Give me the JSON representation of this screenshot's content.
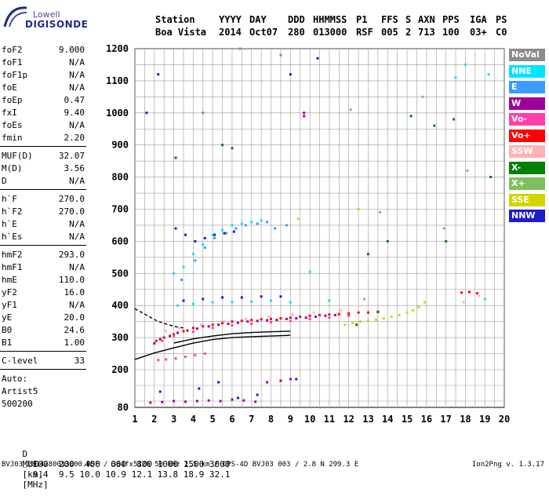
{
  "logo": {
    "top": "Lowell",
    "bottom": "DIGISONDE"
  },
  "header": {
    "cols": [
      {
        "label": "Station",
        "value": "Boa Vista"
      },
      {
        "label": "YYYY",
        "value": "2014"
      },
      {
        "label": "DAY",
        "value": "Oct07"
      },
      {
        "label": "DDD",
        "value": "280"
      },
      {
        "label": "HHMMSS",
        "value": "013000"
      },
      {
        "label": "P1",
        "value": "RSF"
      },
      {
        "label": "FFS",
        "value": "005"
      },
      {
        "label": "S",
        "value": "2"
      },
      {
        "label": "AXN",
        "value": "713"
      },
      {
        "label": "PPS",
        "value": "100"
      },
      {
        "label": "IGA",
        "value": "03+"
      },
      {
        "label": "PS",
        "value": "C0"
      }
    ]
  },
  "params_group1": [
    {
      "k": "foF2",
      "v": "9.000"
    },
    {
      "k": "foF1",
      "v": "N/A"
    },
    {
      "k": "foF1p",
      "v": "N/A"
    },
    {
      "k": "foE",
      "v": "N/A"
    },
    {
      "k": "foEp",
      "v": "0.47"
    },
    {
      "k": "fxI",
      "v": "9.40"
    },
    {
      "k": "foEs",
      "v": "N/A"
    },
    {
      "k": "fmin",
      "v": "2.20"
    }
  ],
  "params_group2": [
    {
      "k": "MUF(D)",
      "v": "32.07"
    },
    {
      "k": "M(D)",
      "v": "3.56"
    },
    {
      "k": "D",
      "v": "N/A"
    }
  ],
  "params_group3": [
    {
      "k": "h`F",
      "v": "270.0"
    },
    {
      "k": "h`F2",
      "v": "270.0"
    },
    {
      "k": "h`E",
      "v": "N/A"
    },
    {
      "k": "h`Es",
      "v": "N/A"
    }
  ],
  "params_group4": [
    {
      "k": "hmF2",
      "v": "293.0"
    },
    {
      "k": "hmF1",
      "v": "N/A"
    },
    {
      "k": "hmE",
      "v": "110.0"
    },
    {
      "k": "yF2",
      "v": "16.0"
    },
    {
      "k": "yF1",
      "v": "N/A"
    },
    {
      "k": "yE",
      "v": "20.0"
    },
    {
      "k": "B0",
      "v": "24.6"
    },
    {
      "k": "B1",
      "v": "1.00"
    }
  ],
  "params_group5": [
    {
      "k": "C-level",
      "v": "33"
    }
  ],
  "auto": {
    "line1": "Auto:",
    "line2": "Artist5",
    "line3": "500200"
  },
  "legend": [
    {
      "label": "NoVal",
      "color": "#8c8c8c"
    },
    {
      "label": "NNE",
      "color": "#00e5ff"
    },
    {
      "label": "E",
      "color": "#3b9cff"
    },
    {
      "label": "W",
      "color": "#a0009a"
    },
    {
      "label": "Vo-",
      "color": "#ff3fa8"
    },
    {
      "label": "Vo+",
      "color": "#ff0000"
    },
    {
      "label": "SSW",
      "color": "#ffb2b2"
    },
    {
      "label": "X-",
      "color": "#008000"
    },
    {
      "label": "X+",
      "color": "#7fbf5f"
    },
    {
      "label": "SSE",
      "color": "#d4d400"
    },
    {
      "label": "NNW",
      "color": "#1c1cc8"
    }
  ],
  "dmuf": {
    "d_label": "D",
    "d_values": [
      "100",
      "200",
      "400",
      "600",
      "800",
      "1000",
      "1500",
      "3000"
    ],
    "d_unit": "[km]",
    "muf_label": "MUF",
    "muf_values": [
      "9.4",
      "9.5",
      "10.0",
      "10.9",
      "12.1",
      "13.8",
      "18.9",
      "32.1"
    ],
    "muf_unit": "[MHz]"
  },
  "footer": {
    "left": "BVJ03_2014280013000.RSF / 384fx512h 50 kHz 2.5 km / DPS-4D BVJ03 003 / 2.8 N 299.3 E",
    "right": "Ion2Png v. 1.3.17"
  },
  "chart_data": {
    "type": "scatter",
    "title": "",
    "xlabel": "",
    "ylabel": "",
    "xlim": [
      1,
      20
    ],
    "ylim": [
      80,
      1200
    ],
    "xticks": [
      1,
      2,
      3,
      4,
      5,
      6,
      7,
      8,
      9,
      10,
      11,
      12,
      13,
      14,
      15,
      16,
      17,
      18,
      19,
      20
    ],
    "yticks": [
      80,
      200,
      300,
      400,
      500,
      600,
      700,
      800,
      900,
      1000,
      1100,
      1200
    ],
    "grid": true,
    "legend_position": "right",
    "series": [
      {
        "name": "Vo+",
        "color": "#ff0000",
        "points": [
          [
            2.1,
            290
          ],
          [
            2.5,
            300
          ],
          [
            3,
            310
          ],
          [
            3.5,
            320
          ],
          [
            4,
            330
          ],
          [
            4.5,
            335
          ],
          [
            5,
            340
          ],
          [
            5.5,
            345
          ],
          [
            6,
            350
          ],
          [
            6.5,
            352
          ],
          [
            7,
            355
          ],
          [
            7.5,
            357
          ],
          [
            8,
            358
          ],
          [
            8.5,
            360
          ],
          [
            9,
            362
          ],
          [
            9.5,
            365
          ],
          [
            10,
            368
          ],
          [
            10.5,
            370
          ],
          [
            11,
            372
          ],
          [
            11.5,
            373
          ],
          [
            12,
            375
          ],
          [
            12.5,
            378
          ],
          [
            13,
            378
          ],
          [
            13.5,
            380
          ],
          [
            17.8,
            440
          ],
          [
            18.2,
            442
          ],
          [
            18.6,
            438
          ]
        ]
      },
      {
        "name": "W",
        "color": "#a0009a",
        "points": [
          [
            2.0,
            282
          ],
          [
            2.3,
            295
          ],
          [
            2.8,
            305
          ],
          [
            3.2,
            315
          ],
          [
            3.7,
            322
          ],
          [
            4.2,
            328
          ],
          [
            4.8,
            335
          ],
          [
            5.3,
            340
          ],
          [
            5.8,
            343
          ],
          [
            6.3,
            346
          ],
          [
            6.8,
            350
          ],
          [
            7.3,
            352
          ],
          [
            7.8,
            354
          ],
          [
            8.3,
            355
          ],
          [
            8.8,
            358
          ],
          [
            9.3,
            360
          ],
          [
            9.8,
            362
          ],
          [
            10.3,
            365
          ],
          [
            10.8,
            368
          ],
          [
            11.3,
            370
          ],
          [
            1.8,
            95
          ],
          [
            2.4,
            97
          ],
          [
            3.0,
            100
          ],
          [
            3.6,
            98
          ],
          [
            4.2,
            100
          ],
          [
            4.8,
            102
          ],
          [
            5.4,
            100
          ],
          [
            6.0,
            105
          ],
          [
            6.6,
            102
          ],
          [
            7.2,
            98
          ],
          [
            7.8,
            160
          ],
          [
            8.5,
            165
          ],
          [
            9.0,
            170
          ],
          [
            9.7,
            1000
          ],
          [
            9.7,
            990
          ]
        ]
      },
      {
        "name": "NNE",
        "color": "#00e5ff",
        "points": [
          [
            3.0,
            500
          ],
          [
            3.5,
            520
          ],
          [
            4.0,
            560
          ],
          [
            4.5,
            590
          ],
          [
            5.0,
            620
          ],
          [
            5.5,
            635
          ],
          [
            6.0,
            650
          ],
          [
            6.5,
            655
          ],
          [
            7.0,
            660
          ],
          [
            7.5,
            665
          ],
          [
            3.2,
            400
          ],
          [
            4.0,
            405
          ],
          [
            5.0,
            410
          ],
          [
            6.0,
            410
          ],
          [
            7.0,
            412
          ],
          [
            8.0,
            415
          ],
          [
            9.0,
            410
          ],
          [
            10.0,
            505
          ],
          [
            11.0,
            415
          ],
          [
            19.0,
            420
          ],
          [
            18.0,
            1150
          ],
          [
            19.2,
            1120
          ],
          [
            17.5,
            1110
          ]
        ]
      },
      {
        "name": "E",
        "color": "#3b9cff",
        "points": [
          [
            3.4,
            480
          ],
          [
            4.1,
            540
          ],
          [
            4.6,
            580
          ],
          [
            5.1,
            610
          ],
          [
            5.7,
            625
          ],
          [
            6.2,
            640
          ],
          [
            6.7,
            650
          ],
          [
            7.3,
            655
          ],
          [
            7.8,
            660
          ],
          [
            8.2,
            640
          ],
          [
            8.8,
            650
          ]
        ]
      },
      {
        "name": "Vo-",
        "color": "#ff3fa8",
        "points": [
          [
            2.2,
            230
          ],
          [
            2.6,
            232
          ],
          [
            3.1,
            235
          ],
          [
            3.6,
            240
          ],
          [
            4.1,
            245
          ],
          [
            4.6,
            250
          ],
          [
            2.4,
            290
          ],
          [
            3.0,
            305
          ],
          [
            4.0,
            318
          ],
          [
            5.0,
            330
          ],
          [
            6.0,
            338
          ],
          [
            7.0,
            343
          ],
          [
            8.0,
            348
          ],
          [
            9.0,
            352
          ],
          [
            10.0,
            358
          ],
          [
            11.0,
            362
          ],
          [
            12.0,
            368
          ]
        ]
      },
      {
        "name": "SSW",
        "color": "#ffb2b2",
        "points": [
          [
            2.6,
            320
          ],
          [
            3.3,
            330
          ],
          [
            4.4,
            340
          ],
          [
            5.6,
            350
          ],
          [
            6.7,
            358
          ],
          [
            7.9,
            365
          ],
          [
            9.1,
            372
          ],
          [
            10.2,
            378
          ],
          [
            11.6,
            385
          ],
          [
            17.9,
            410
          ],
          [
            18.7,
            430
          ]
        ]
      },
      {
        "name": "X-",
        "color": "#008000",
        "points": [
          [
            3.1,
            860
          ],
          [
            5.5,
            900
          ],
          [
            6.0,
            890
          ],
          [
            12.4,
            340
          ],
          [
            13.0,
            560
          ],
          [
            14.0,
            600
          ],
          [
            16.4,
            960
          ],
          [
            17.4,
            980
          ],
          [
            17.0,
            600
          ],
          [
            19.3,
            800
          ],
          [
            15.2,
            990
          ],
          [
            13.5,
            380
          ]
        ]
      },
      {
        "name": "X+",
        "color": "#7fbf5f",
        "points": [
          [
            12.8,
            420
          ],
          [
            13.6,
            690
          ],
          [
            16.9,
            640
          ],
          [
            18.1,
            820
          ],
          [
            15.8,
            1050
          ],
          [
            12.1,
            1010
          ]
        ]
      },
      {
        "name": "SSE",
        "color": "#d4d400",
        "points": [
          [
            11.8,
            340
          ],
          [
            12.2,
            345
          ],
          [
            12.6,
            350
          ],
          [
            13.0,
            352
          ],
          [
            13.4,
            356
          ],
          [
            13.8,
            360
          ],
          [
            14.2,
            365
          ],
          [
            14.6,
            370
          ],
          [
            15.0,
            378
          ],
          [
            15.3,
            385
          ],
          [
            15.6,
            395
          ],
          [
            15.9,
            410
          ],
          [
            9.4,
            670
          ],
          [
            12.5,
            700
          ]
        ]
      },
      {
        "name": "NNW",
        "color": "#1c1cc8",
        "points": [
          [
            3.1,
            640
          ],
          [
            3.6,
            620
          ],
          [
            4.1,
            600
          ],
          [
            4.6,
            610
          ],
          [
            5.1,
            620
          ],
          [
            5.6,
            625
          ],
          [
            6.1,
            630
          ],
          [
            2.3,
            130
          ],
          [
            4.3,
            140
          ],
          [
            5.3,
            160
          ],
          [
            6.3,
            110
          ],
          [
            7.3,
            120
          ],
          [
            3.5,
            415
          ],
          [
            4.5,
            420
          ],
          [
            5.5,
            425
          ],
          [
            6.5,
            425
          ],
          [
            7.5,
            428
          ],
          [
            8.5,
            428
          ],
          [
            9.3,
            170
          ],
          [
            2.2,
            1120
          ],
          [
            1.6,
            1000
          ],
          [
            9.0,
            1120
          ],
          [
            10.4,
            1170
          ]
        ]
      },
      {
        "name": "NoVal",
        "color": "#8c8c8c",
        "points": [
          [
            4.5,
            1000
          ],
          [
            6.4,
            1200
          ],
          [
            8.5,
            1180
          ]
        ]
      }
    ],
    "fitted_curves": [
      {
        "color": "#000000",
        "style": "solid",
        "points": [
          [
            1.0,
            232
          ],
          [
            2.0,
            252
          ],
          [
            3.0,
            268
          ],
          [
            4.0,
            283
          ],
          [
            5.0,
            294
          ],
          [
            6.0,
            300
          ],
          [
            7.0,
            303
          ],
          [
            8.0,
            305
          ],
          [
            9.0,
            307
          ]
        ]
      },
      {
        "color": "#000000",
        "style": "solid",
        "points": [
          [
            3.0,
            283
          ],
          [
            4.0,
            296
          ],
          [
            5.0,
            305
          ],
          [
            6.0,
            312
          ],
          [
            7.0,
            316
          ],
          [
            8.0,
            318
          ],
          [
            9.0,
            320
          ]
        ]
      },
      {
        "color": "#000000",
        "style": "dashed",
        "points": [
          [
            1.0,
            390
          ],
          [
            1.6,
            370
          ],
          [
            2.2,
            350
          ],
          [
            3.0,
            335
          ],
          [
            3.5,
            330
          ]
        ]
      }
    ]
  }
}
